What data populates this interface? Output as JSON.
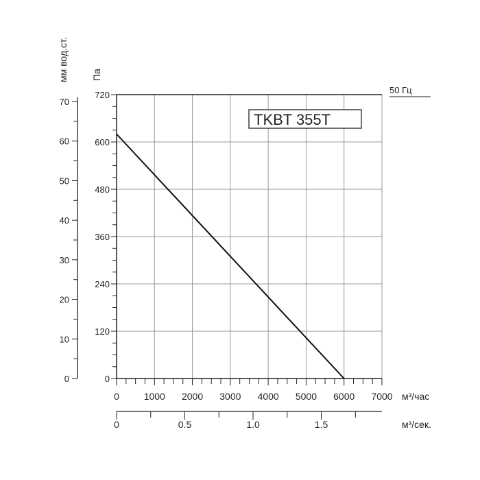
{
  "chart_data": {
    "type": "line",
    "title": "TKBT 355T",
    "frequency_label": "50 Гц",
    "x_unit_label": "м³/час",
    "x2_unit_label": "м³/сек.",
    "y_unit_label": "Па",
    "y2_unit_label": "мм вод.ст.",
    "xlim": [
      0,
      7000
    ],
    "ylim": [
      0,
      720
    ],
    "y2lim": [
      0,
      70
    ],
    "x2lim": [
      0,
      1.944
    ],
    "grid": true,
    "x_ticks": [
      "0",
      "1000",
      "2000",
      "3000",
      "4000",
      "5000",
      "6000",
      "7000"
    ],
    "y_ticks": [
      "0",
      "120",
      "240",
      "360",
      "480",
      "600",
      "720"
    ],
    "y2_ticks": [
      "0",
      "10",
      "20",
      "30",
      "40",
      "50",
      "60",
      "70"
    ],
    "x2_ticks": [
      "0",
      "0.5",
      "1.0",
      "1.5"
    ],
    "series": [
      {
        "x": [
          0,
          6000
        ],
        "y": [
          620,
          0
        ],
        "color": "#111111"
      }
    ]
  }
}
